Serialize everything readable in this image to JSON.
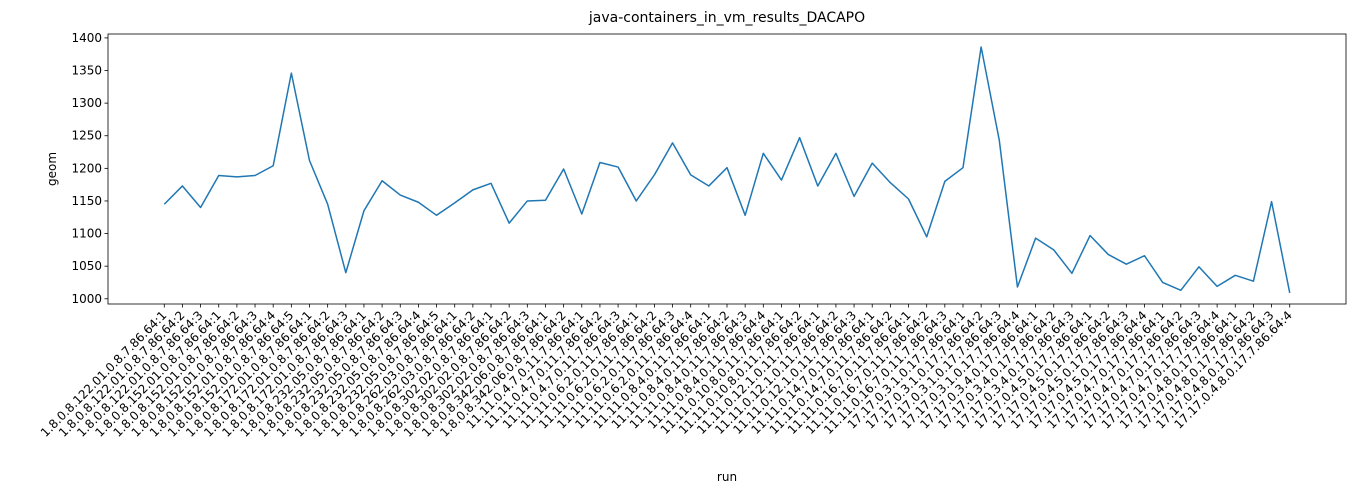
{
  "chart_data": {
    "type": "line",
    "title": "java-containers_in_vm_results_DACAPO",
    "x_label": "run",
    "y_label": "geom",
    "categories": [
      "1.8.0.8.122.01.0.8.7.86.64:1",
      "1.8.0.8.122.01.0.8.7.86.64:2",
      "1.8.0.8.122.01.0.8.7.86.64:3",
      "1.8.0.8.152.01.0.8.7.86.64:1",
      "1.8.0.8.152.01.0.8.7.86.64:2",
      "1.8.0.8.152.01.0.8.7.86.64:3",
      "1.8.0.8.152.01.0.8.7.86.64:4",
      "1.8.0.8.152.01.0.8.7.86.64:5",
      "1.8.0.8.172.01.0.8.7.86.64:1",
      "1.8.0.8.172.01.0.8.7.86.64:2",
      "1.8.0.8.172.01.0.8.7.86.64:3",
      "1.8.0.8.232.05.0.8.7.86.64:1",
      "1.8.0.8.232.05.0.8.7.86.64:2",
      "1.8.0.8.232.05.0.8.7.86.64:3",
      "1.8.0.8.232.05.0.8.7.86.64:4",
      "1.8.0.8.232.05.0.8.7.86.64:5",
      "1.8.0.8.262.03.0.8.7.86.64:1",
      "1.8.0.8.262.03.0.8.7.86.64:2",
      "1.8.0.8.302.02.0.8.7.86.64:1",
      "1.8.0.8.302.02.0.8.7.86.64:2",
      "1.8.0.8.302.02.0.8.7.86.64:3",
      "1.8.0.8.342.06.0.8.7.86.64:1",
      "1.8.0.8.342.06.0.8.7.86.64:2",
      "11.11.0.4.7.0.11.7.86.64:1",
      "11.11.0.4.7.0.11.7.86.64:2",
      "11.11.0.4.7.0.11.7.86.64:3",
      "11.11.0.6.2.0.11.7.86.64:1",
      "11.11.0.6.2.0.11.7.86.64:2",
      "11.11.0.6.2.0.11.7.86.64:3",
      "11.11.0.6.2.0.11.7.86.64:4",
      "11.11.0.8.4.0.11.7.86.64:1",
      "11.11.0.8.4.0.11.7.86.64:2",
      "11.11.0.8.4.0.11.7.86.64:3",
      "11.11.0.8.4.0.11.7.86.64:4",
      "11.11.0.10.8.0.11.7.86.64:1",
      "11.11.0.10.8.0.11.7.86.64:2",
      "11.11.0.12.1.0.11.7.86.64:1",
      "11.11.0.12.1.0.11.7.86.64:2",
      "11.11.0.12.1.0.11.7.86.64:3",
      "11.11.0.14.7.0.11.7.86.64:1",
      "11.11.0.14.7.0.11.7.86.64:2",
      "11.11.0.16.7.0.11.7.86.64:1",
      "11.11.0.16.7.0.11.7.86.64:2",
      "11.11.0.16.7.0.11.7.86.64:3",
      "17.17.0.3.1.0.17.7.86.64:1",
      "17.17.0.3.1.0.17.7.86.64:2",
      "17.17.0.3.1.0.17.7.86.64:3",
      "17.17.0.3.1.0.17.7.86.64:4",
      "17.17.0.3.4.0.17.7.86.64:1",
      "17.17.0.3.4.0.17.7.86.64:2",
      "17.17.0.3.4.0.17.7.86.64:3",
      "17.17.0.4.5.0.17.7.86.64:1",
      "17.17.0.4.5.0.17.7.86.64:2",
      "17.17.0.4.5.0.17.7.86.64:3",
      "17.17.0.4.5.0.17.7.86.64:4",
      "17.17.0.4.7.0.17.7.86.64:1",
      "17.17.0.4.7.0.17.7.86.64:2",
      "17.17.0.4.7.0.17.7.86.64:3",
      "17.17.0.4.7.0.17.7.86.64:4",
      "17.17.0.4.8.0.17.7.86.64:1",
      "17.17.0.4.8.0.17.7.86.64:2",
      "17.17.0.4.8.0.17.7.86.64:3",
      "17.17.0.4.8.0.17.7.86.64:4"
    ],
    "series": [
      {
        "name": "geom",
        "color": "#1f77b4",
        "values": [
          1145,
          1173,
          1140,
          1189,
          1187,
          1189,
          1204,
          1346,
          1212,
          1145,
          1040,
          1135,
          1181,
          1159,
          1148,
          1128,
          1147,
          1167,
          1177,
          1116,
          1150,
          1151,
          1199,
          1130,
          1209,
          1202,
          1150,
          1190,
          1239,
          1190,
          1173,
          1201,
          1128,
          1223,
          1182,
          1247,
          1173,
          1223,
          1157,
          1208,
          1178,
          1153,
          1095,
          1180,
          1201,
          1386,
          1243,
          1018,
          1093,
          1075,
          1039,
          1097,
          1068,
          1053,
          1066,
          1025,
          1013,
          1049,
          1019,
          1036,
          1027,
          1149,
          1009
        ]
      }
    ],
    "ylim": [
      992,
      1406
    ],
    "yticks": [
      1000,
      1050,
      1100,
      1150,
      1200,
      1250,
      1300,
      1350,
      1400
    ],
    "grid": false
  }
}
